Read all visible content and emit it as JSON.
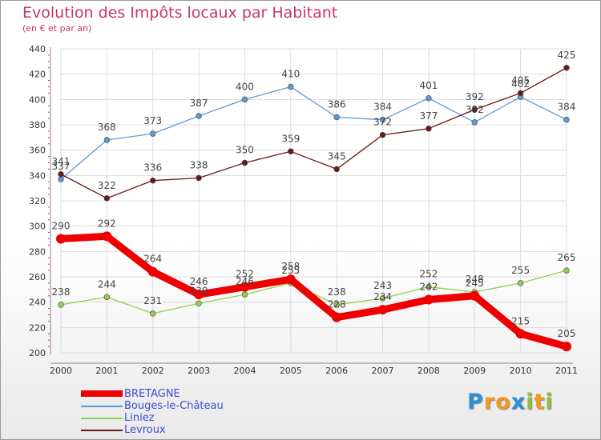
{
  "title": "Evolution des Impôts locaux par Habitant",
  "subtitle": "(en € et par an)",
  "logo": {
    "letters": [
      "P",
      "r",
      "o",
      "x",
      "i",
      "t",
      "i"
    ],
    "colors": [
      "#2f8fd6",
      "#f29a1c",
      "#f29a1c",
      "#2f8fd6",
      "#8fc23a",
      "#f29a1c",
      "#8fc23a"
    ]
  },
  "chart_data": {
    "type": "line",
    "title": "Evolution des Impôts locaux par Habitant",
    "subtitle": "(en € et par an)",
    "xlabel": "",
    "ylabel": "",
    "x": [
      "2000",
      "2001",
      "2002",
      "2003",
      "2004",
      "2005",
      "2006",
      "2007",
      "2008",
      "2009",
      "2010",
      "2011"
    ],
    "ylim": [
      200,
      440
    ],
    "yticks": [
      "200",
      "220",
      "240",
      "260",
      "280",
      "300",
      "320",
      "340",
      "360",
      "380",
      "400",
      "420",
      "440"
    ],
    "grid": true,
    "legend_position": "bottom-left",
    "series": [
      {
        "name": "BRETAGNE",
        "color": "#ee0000",
        "values": [
          290,
          292,
          264,
          246,
          252,
          258,
          228,
          234,
          242,
          245,
          215,
          205
        ],
        "bold": true
      },
      {
        "name": "Bouges-le-Château",
        "color": "#5b9bd5",
        "values": [
          337,
          368,
          373,
          387,
          400,
          410,
          386,
          384,
          401,
          382,
          402,
          384
        ]
      },
      {
        "name": "Liniez",
        "color": "#8fd14f",
        "values": [
          238,
          244,
          231,
          239,
          246,
          255,
          238,
          243,
          252,
          248,
          255,
          265
        ]
      },
      {
        "name": "Levroux",
        "color": "#6b1a1a",
        "values": [
          341,
          322,
          336,
          338,
          350,
          359,
          345,
          372,
          377,
          392,
          405,
          425
        ]
      }
    ]
  }
}
